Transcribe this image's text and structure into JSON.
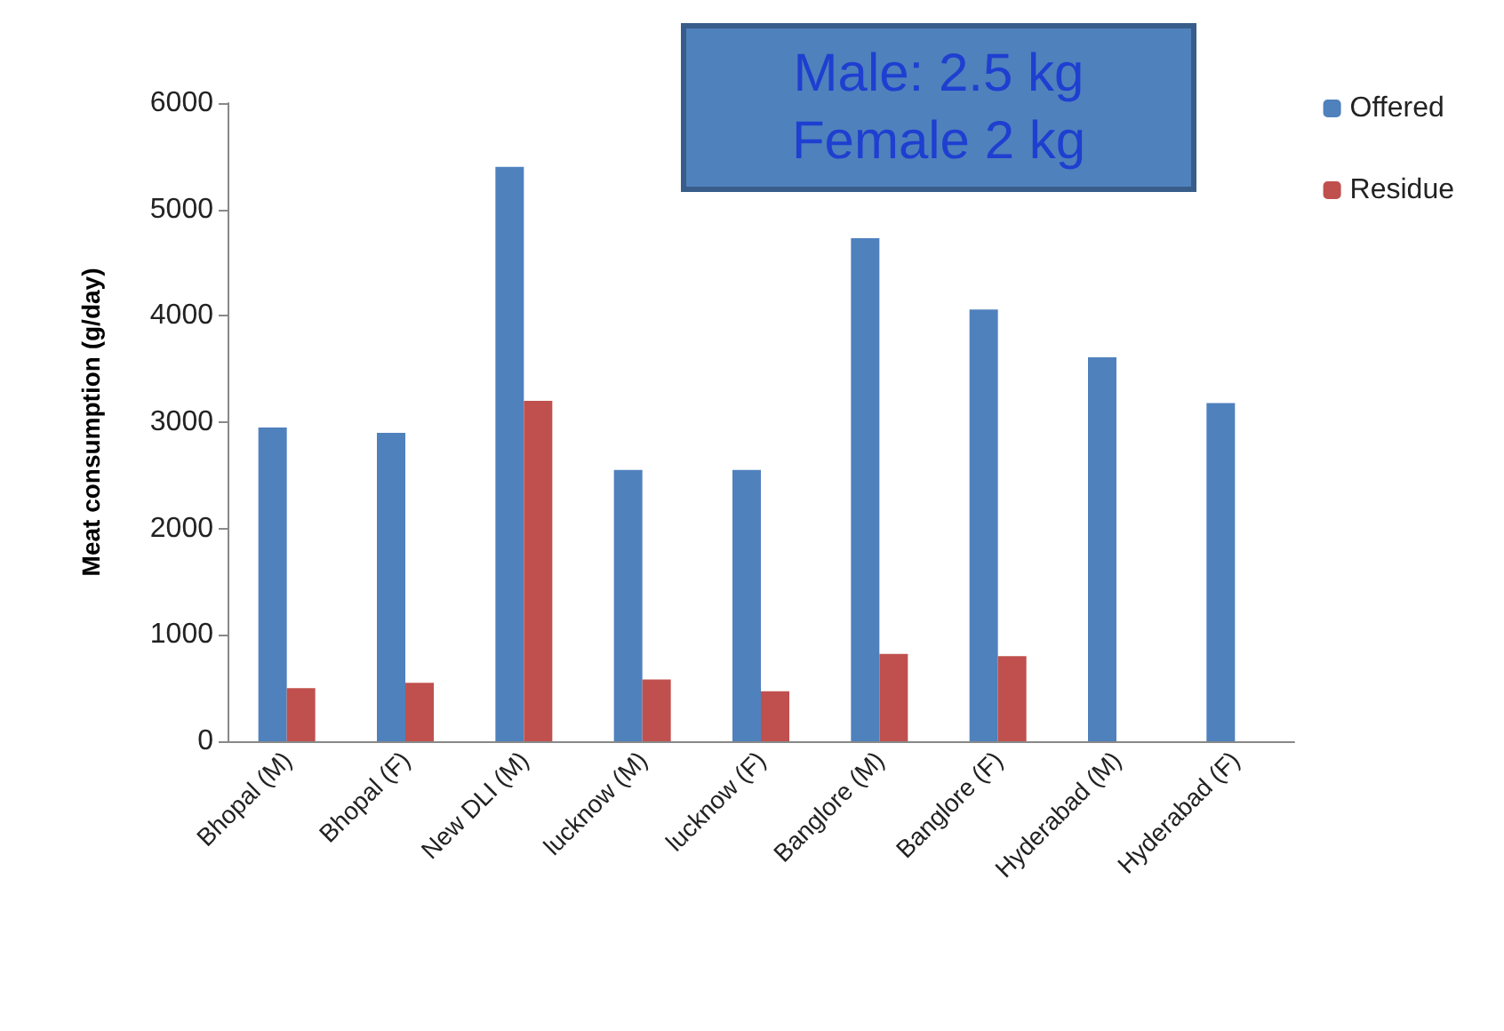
{
  "chart_data": {
    "type": "bar",
    "categories": [
      "Bhopal (M)",
      "Bhopal (F)",
      "New DLI (M)",
      "lucknow (M)",
      "lucknow (F)",
      "Banglore (M)",
      "Banglore (F)",
      "Hyderabad (M)",
      "Hyderabad (F)"
    ],
    "series": [
      {
        "name": "Offered",
        "color": "#4f81bd",
        "values": [
          2950,
          2900,
          5400,
          2550,
          2550,
          4730,
          4060,
          3610,
          3180
        ]
      },
      {
        "name": "Residue",
        "color": "#c0504d",
        "values": [
          500,
          550,
          3200,
          580,
          470,
          820,
          800,
          0,
          0
        ]
      }
    ],
    "ylabel": "Meat consumption (g/day)",
    "ylim": [
      0,
      6000
    ],
    "yticks": [
      0,
      1000,
      2000,
      3000,
      4000,
      5000,
      6000
    ],
    "annotations": [
      "Male: 2.5 kg",
      "Female 2 kg"
    ],
    "legend": "top right",
    "grid": false
  }
}
